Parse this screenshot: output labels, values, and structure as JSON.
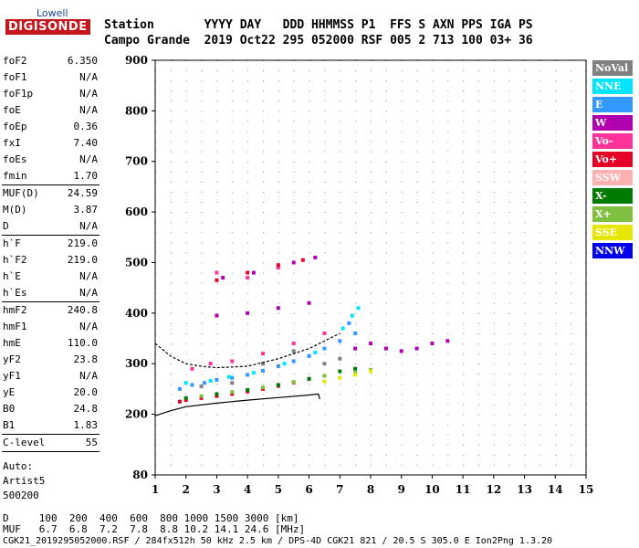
{
  "logo": {
    "line1": "Lowell",
    "line2": "DIGISONDE"
  },
  "header": {
    "row1": "Station       YYYY DAY   DDD HHMMSS P1  FFS S AXN PPS IGA PS",
    "row2": "Campo Grande  2019 Oct22 295 052000 RSF 005 2 713 100 03+ 36"
  },
  "params": {
    "group1": [
      {
        "label": "foF2",
        "value": "6.350"
      },
      {
        "label": "foF1",
        "value": "N/A"
      },
      {
        "label": "foF1p",
        "value": "N/A"
      },
      {
        "label": "foE",
        "value": "N/A"
      },
      {
        "label": "foEp",
        "value": "0.36"
      },
      {
        "label": "fxI",
        "value": "7.40"
      },
      {
        "label": "foEs",
        "value": "N/A"
      },
      {
        "label": "fmin",
        "value": "1.70"
      }
    ],
    "group2": [
      {
        "label": "MUF(D)",
        "value": "24.59"
      },
      {
        "label": "M(D)",
        "value": "3.87"
      },
      {
        "label": "D",
        "value": "N/A"
      }
    ],
    "group3": [
      {
        "label": "h`F",
        "value": "219.0"
      },
      {
        "label": "h`F2",
        "value": "219.0"
      },
      {
        "label": "h`E",
        "value": "N/A"
      },
      {
        "label": "h`Es",
        "value": "N/A"
      }
    ],
    "group4": [
      {
        "label": "hmF2",
        "value": "240.8"
      },
      {
        "label": "hmF1",
        "value": "N/A"
      },
      {
        "label": "hmE",
        "value": "110.0"
      },
      {
        "label": "yF2",
        "value": "23.8"
      },
      {
        "label": "yF1",
        "value": "N/A"
      },
      {
        "label": "yE",
        "value": "20.0"
      },
      {
        "label": "B0",
        "value": "24.8"
      },
      {
        "label": "B1",
        "value": "1.83"
      }
    ],
    "group5": [
      {
        "label": "C-level",
        "value": "55"
      }
    ],
    "auto": [
      "Auto:",
      "Artist5",
      "500200"
    ]
  },
  "legend": [
    {
      "label": "NoVal",
      "color": "#808080"
    },
    {
      "label": "NNE",
      "color": "#00e5ff"
    },
    {
      "label": "E",
      "color": "#3399ff"
    },
    {
      "label": "W",
      "color": "#b000b0"
    },
    {
      "label": "Vo-",
      "color": "#ff3399"
    },
    {
      "label": "Vo+",
      "color": "#e60026"
    },
    {
      "label": "SSW",
      "color": "#ffb0b0"
    },
    {
      "label": "X-",
      "color": "#007a00"
    },
    {
      "label": "X+",
      "color": "#80c040"
    },
    {
      "label": "SSE",
      "color": "#e6e600"
    },
    {
      "label": "NNW",
      "color": "#0000ee"
    }
  ],
  "footer": {
    "line1": "D     100  200  400  600  800 1000 1500 3000 [km]",
    "line2": "MUF   6.7  6.8  7.2  7.8  8.8 10.2 14.1 24.6 [MHz]",
    "line3": "CGK21_2019295052000.RSF / 284fx512h 50 kHz 2.5 km / DPS-4D CGK21 821 / 20.5 S 305.0 E Ion2Png 1.3.20"
  },
  "chart_data": {
    "type": "scatter",
    "title": "",
    "xlabel": "",
    "ylabel": "",
    "xlim": [
      1,
      15
    ],
    "ylim": [
      80,
      900
    ],
    "xticks": [
      1,
      2,
      3,
      4,
      5,
      6,
      7,
      8,
      9,
      10,
      11,
      12,
      13,
      14,
      15
    ],
    "yticks": [
      80,
      200,
      300,
      400,
      500,
      600,
      700,
      800,
      900
    ],
    "grid": true,
    "series": [
      {
        "name": "E",
        "color": "#3399ff",
        "points": [
          [
            1.8,
            250
          ],
          [
            2.2,
            258
          ],
          [
            2.6,
            262
          ],
          [
            3.0,
            268
          ],
          [
            3.5,
            272
          ],
          [
            4.0,
            278
          ],
          [
            4.5,
            286
          ],
          [
            5.0,
            295
          ],
          [
            5.5,
            305
          ],
          [
            6.0,
            315
          ],
          [
            6.5,
            330
          ],
          [
            7.0,
            345
          ],
          [
            7.3,
            380
          ],
          [
            7.5,
            360
          ]
        ]
      },
      {
        "name": "NNE",
        "color": "#00e5ff",
        "points": [
          [
            2.0,
            262
          ],
          [
            2.8,
            266
          ],
          [
            3.4,
            274
          ],
          [
            4.2,
            282
          ],
          [
            5.2,
            300
          ],
          [
            6.2,
            322
          ],
          [
            7.1,
            370
          ],
          [
            7.4,
            395
          ],
          [
            7.6,
            410
          ]
        ]
      },
      {
        "name": "W",
        "color": "#b000b0",
        "points": [
          [
            3.0,
            395
          ],
          [
            4.0,
            400
          ],
          [
            5.0,
            410
          ],
          [
            6.0,
            420
          ],
          [
            7.5,
            330
          ],
          [
            8.0,
            340
          ],
          [
            8.5,
            330
          ],
          [
            9.0,
            325
          ],
          [
            9.5,
            330
          ],
          [
            10.0,
            340
          ],
          [
            10.5,
            345
          ],
          [
            3.2,
            470
          ],
          [
            4.2,
            480
          ],
          [
            5.5,
            500
          ],
          [
            6.2,
            510
          ]
        ]
      },
      {
        "name": "Vo-",
        "color": "#ff3399",
        "points": [
          [
            2.2,
            290
          ],
          [
            2.8,
            300
          ],
          [
            3.5,
            305
          ],
          [
            4.5,
            320
          ],
          [
            5.5,
            340
          ],
          [
            6.5,
            360
          ],
          [
            3.0,
            480
          ],
          [
            4.0,
            470
          ],
          [
            5.0,
            490
          ]
        ]
      },
      {
        "name": "Vo+",
        "color": "#e60026",
        "points": [
          [
            1.8,
            225
          ],
          [
            2.0,
            228
          ],
          [
            2.5,
            232
          ],
          [
            3.0,
            236
          ],
          [
            3.5,
            240
          ],
          [
            4.0,
            245
          ],
          [
            4.5,
            250
          ],
          [
            5.0,
            256
          ],
          [
            5.5,
            263
          ],
          [
            6.0,
            270
          ],
          [
            3.0,
            465
          ],
          [
            4.0,
            480
          ],
          [
            5.0,
            495
          ],
          [
            5.8,
            505
          ]
        ]
      },
      {
        "name": "X-",
        "color": "#007a00",
        "points": [
          [
            2.0,
            232
          ],
          [
            3.0,
            240
          ],
          [
            4.0,
            248
          ],
          [
            5.0,
            258
          ],
          [
            6.0,
            270
          ],
          [
            7.0,
            285
          ],
          [
            7.5,
            290
          ]
        ]
      },
      {
        "name": "X+",
        "color": "#80c040",
        "points": [
          [
            2.5,
            236
          ],
          [
            3.5,
            244
          ],
          [
            4.5,
            253
          ],
          [
            5.5,
            264
          ],
          [
            6.5,
            276
          ],
          [
            7.5,
            282
          ],
          [
            8.0,
            288
          ]
        ]
      },
      {
        "name": "SSE",
        "color": "#e6e600",
        "points": [
          [
            6.5,
            265
          ],
          [
            7.0,
            272
          ],
          [
            7.5,
            278
          ],
          [
            8.0,
            285
          ]
        ]
      },
      {
        "name": "NoVal",
        "color": "#808080",
        "points": [
          [
            2.5,
            255
          ],
          [
            3.5,
            262
          ],
          [
            4.5,
            300
          ],
          [
            5.5,
            325
          ],
          [
            6.5,
            300
          ],
          [
            7.0,
            310
          ]
        ]
      }
    ],
    "profile_lines": [
      {
        "name": "virtual-height-trace",
        "color": "#000000",
        "points": [
          [
            1.0,
            340
          ],
          [
            1.5,
            315
          ],
          [
            2.0,
            300
          ],
          [
            2.5,
            295
          ],
          [
            3.0,
            292
          ],
          [
            4.0,
            295
          ],
          [
            5.0,
            310
          ],
          [
            6.0,
            330
          ],
          [
            7.0,
            360
          ]
        ]
      },
      {
        "name": "true-height-profile",
        "color": "#000000",
        "points": [
          [
            1.0,
            197
          ],
          [
            1.5,
            207
          ],
          [
            2.0,
            215
          ],
          [
            3.0,
            222
          ],
          [
            4.0,
            228
          ],
          [
            5.0,
            233
          ],
          [
            6.0,
            238
          ],
          [
            6.3,
            240
          ],
          [
            6.35,
            230
          ]
        ]
      }
    ]
  }
}
